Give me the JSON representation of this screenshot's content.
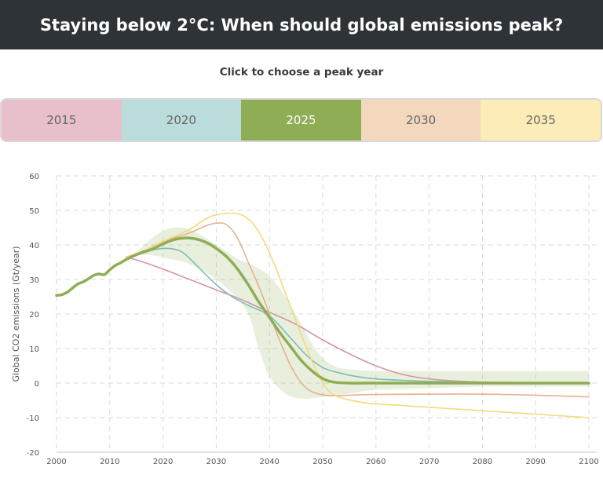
{
  "header": {
    "title": "Staying below 2°C: When should global emissions peak?"
  },
  "subtitle": "Click to choose a peak year",
  "tabs": [
    {
      "label": "2015",
      "color": "#e8c0cb"
    },
    {
      "label": "2020",
      "color": "#badcda"
    },
    {
      "label": "2025",
      "color": "#8fad55"
    },
    {
      "label": "2030",
      "color": "#f4d8bd"
    },
    {
      "label": "2035",
      "color": "#fbecb8"
    }
  ],
  "selected_tab": "2025",
  "chart_data": {
    "type": "line",
    "ylabel": "Global CO2 emissions (Gt/year)",
    "xlabel": "",
    "xlim": [
      2000,
      2100
    ],
    "ylim": [
      -20,
      60
    ],
    "x_ticks": [
      "2000",
      "2010",
      "2020",
      "2030",
      "2040",
      "2050",
      "2060",
      "2070",
      "2080",
      "2090",
      "2100"
    ],
    "y_ticks": [
      "60",
      "50",
      "40",
      "30",
      "20",
      "10",
      "0",
      "-10",
      "-20"
    ],
    "grid": true,
    "band": {
      "color": "#8fad55",
      "upper": [
        [
          2012,
          35
        ],
        [
          2015,
          38
        ],
        [
          2018,
          42
        ],
        [
          2020,
          44
        ],
        [
          2022,
          45
        ],
        [
          2025,
          44.5
        ],
        [
          2028,
          42
        ],
        [
          2031,
          39
        ],
        [
          2034,
          36
        ],
        [
          2037,
          34
        ],
        [
          2040,
          31
        ],
        [
          2043,
          25
        ],
        [
          2046,
          17
        ],
        [
          2049,
          9
        ],
        [
          2052,
          5
        ],
        [
          2055,
          4
        ],
        [
          2060,
          3.5
        ],
        [
          2070,
          3.5
        ],
        [
          2080,
          3.5
        ],
        [
          2090,
          3.5
        ],
        [
          2100,
          3.5
        ]
      ],
      "lower": [
        [
          2100,
          -1
        ],
        [
          2090,
          -1
        ],
        [
          2080,
          -1
        ],
        [
          2070,
          -1.5
        ],
        [
          2060,
          -2
        ],
        [
          2055,
          -3
        ],
        [
          2050,
          -4
        ],
        [
          2046,
          -4.5
        ],
        [
          2043,
          -3
        ],
        [
          2040,
          2
        ],
        [
          2038,
          10
        ],
        [
          2036,
          20
        ],
        [
          2033,
          26
        ],
        [
          2030,
          30
        ],
        [
          2027,
          33
        ],
        [
          2024,
          35
        ],
        [
          2021,
          36
        ],
        [
          2018,
          37
        ],
        [
          2015,
          37
        ],
        [
          2012,
          35
        ]
      ]
    },
    "series": [
      {
        "label": "2015",
        "color": "#d396a5",
        "width": 1.6,
        "points": [
          [
            2013,
            36.5
          ],
          [
            2016,
            35.2
          ],
          [
            2020,
            33
          ],
          [
            2025,
            30
          ],
          [
            2030,
            27
          ],
          [
            2035,
            24
          ],
          [
            2040,
            20.5
          ],
          [
            2045,
            17
          ],
          [
            2050,
            12.5
          ],
          [
            2055,
            8.5
          ],
          [
            2060,
            5
          ],
          [
            2065,
            2.5
          ],
          [
            2070,
            1.2
          ],
          [
            2075,
            0.6
          ],
          [
            2080,
            0.3
          ],
          [
            2090,
            0.1
          ],
          [
            2100,
            0
          ]
        ]
      },
      {
        "label": "2020",
        "color": "#7dbdb8",
        "width": 1.6,
        "points": [
          [
            2013,
            36.5
          ],
          [
            2016,
            37.5
          ],
          [
            2018,
            38.5
          ],
          [
            2020,
            39
          ],
          [
            2022,
            38.8
          ],
          [
            2024,
            37.5
          ],
          [
            2027,
            33
          ],
          [
            2030,
            28.5
          ],
          [
            2033,
            25
          ],
          [
            2036,
            22.5
          ],
          [
            2040,
            19.5
          ],
          [
            2044,
            13
          ],
          [
            2047,
            8
          ],
          [
            2050,
            4.5
          ],
          [
            2053,
            3
          ],
          [
            2056,
            2
          ],
          [
            2060,
            1.2
          ],
          [
            2065,
            0.8
          ],
          [
            2070,
            0.5
          ],
          [
            2080,
            0.2
          ],
          [
            2090,
            0.1
          ],
          [
            2100,
            0
          ]
        ]
      },
      {
        "label": "2030",
        "color": "#e8b08f",
        "width": 1.6,
        "points": [
          [
            2013,
            36.5
          ],
          [
            2016,
            38
          ],
          [
            2020,
            41
          ],
          [
            2025,
            43.5
          ],
          [
            2028,
            45.5
          ],
          [
            2030,
            46.3
          ],
          [
            2032,
            45.8
          ],
          [
            2034,
            42
          ],
          [
            2036,
            35
          ],
          [
            2038,
            28
          ],
          [
            2040,
            20
          ],
          [
            2042,
            12
          ],
          [
            2044,
            5
          ],
          [
            2046,
            0
          ],
          [
            2048,
            -2.5
          ],
          [
            2051,
            -3.6
          ],
          [
            2055,
            -3.5
          ],
          [
            2060,
            -3.3
          ],
          [
            2070,
            -3.2
          ],
          [
            2080,
            -3.2
          ],
          [
            2090,
            -3.5
          ],
          [
            2100,
            -4
          ]
        ]
      },
      {
        "label": "2035",
        "color": "#f4d97b",
        "width": 1.6,
        "points": [
          [
            2013,
            36.5
          ],
          [
            2016,
            38
          ],
          [
            2020,
            41
          ],
          [
            2025,
            44.5
          ],
          [
            2028,
            47.5
          ],
          [
            2030,
            48.7
          ],
          [
            2033,
            49.2
          ],
          [
            2035,
            48.5
          ],
          [
            2037,
            46
          ],
          [
            2039,
            41
          ],
          [
            2041,
            34
          ],
          [
            2043,
            26
          ],
          [
            2045,
            18
          ],
          [
            2047,
            10
          ],
          [
            2049,
            3
          ],
          [
            2051,
            -2
          ],
          [
            2053,
            -4
          ],
          [
            2057,
            -5.5
          ],
          [
            2060,
            -6
          ],
          [
            2065,
            -6.5
          ],
          [
            2070,
            -7
          ],
          [
            2080,
            -8
          ],
          [
            2090,
            -9
          ],
          [
            2100,
            -10
          ]
        ]
      },
      {
        "label": "2025",
        "color": "#8fad55",
        "width": 3.5,
        "points": [
          [
            2000,
            25.4
          ],
          [
            2001,
            25.6
          ],
          [
            2002,
            26.3
          ],
          [
            2003,
            27.5
          ],
          [
            2004,
            28.7
          ],
          [
            2005,
            29.3
          ],
          [
            2006,
            30.2
          ],
          [
            2007,
            31.2
          ],
          [
            2008,
            31.6
          ],
          [
            2009,
            31.4
          ],
          [
            2010,
            32.8
          ],
          [
            2011,
            34
          ],
          [
            2012,
            34.8
          ],
          [
            2013,
            35.7
          ],
          [
            2014,
            36.5
          ],
          [
            2016,
            37.8
          ],
          [
            2018,
            38.8
          ],
          [
            2020,
            40.3
          ],
          [
            2022,
            41.5
          ],
          [
            2024,
            42
          ],
          [
            2026,
            41.8
          ],
          [
            2028,
            40.8
          ],
          [
            2030,
            39
          ],
          [
            2032,
            36.5
          ],
          [
            2034,
            33
          ],
          [
            2036,
            28.5
          ],
          [
            2038,
            23.5
          ],
          [
            2040,
            19
          ],
          [
            2042,
            14.5
          ],
          [
            2044,
            10.5
          ],
          [
            2046,
            6.5
          ],
          [
            2048,
            3.5
          ],
          [
            2050,
            1.3
          ],
          [
            2052,
            0.3
          ],
          [
            2055,
            0
          ],
          [
            2060,
            0
          ],
          [
            2070,
            0
          ],
          [
            2080,
            0
          ],
          [
            2090,
            0
          ],
          [
            2100,
            0
          ]
        ]
      }
    ]
  }
}
